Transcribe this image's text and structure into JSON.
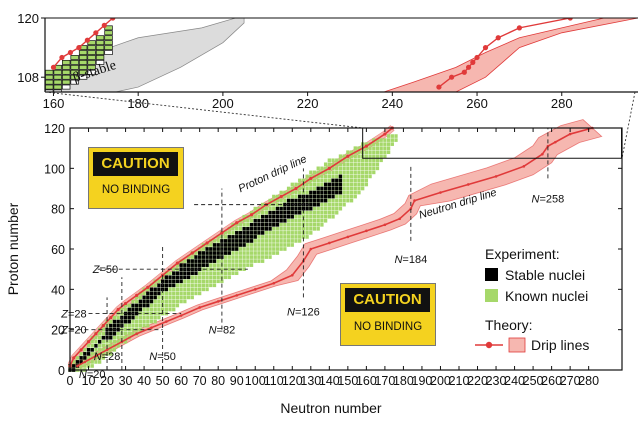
{
  "chart_data": [
    {
      "type": "scatter",
      "title": "",
      "xlabel": "",
      "ylabel": "",
      "xlim": [
        158,
        298
      ],
      "ylim": [
        105,
        120
      ],
      "x_ticks": [
        "160",
        "180",
        "200",
        "220",
        "240",
        "260",
        "280"
      ],
      "y_ticks": [
        "108",
        "120"
      ],
      "annotations": [
        "β-stable"
      ],
      "series": [
        {
          "role": "proton-drip",
          "x": [
            160,
            162,
            164,
            166,
            168,
            170,
            172,
            174
          ],
          "y": [
            110,
            112,
            113,
            114,
            115.5,
            117,
            118.5,
            120
          ]
        },
        {
          "role": "neutron-drip",
          "x": [
            251,
            254,
            257,
            258,
            259,
            260,
            262,
            265,
            270,
            282
          ],
          "y": [
            106,
            108,
            109,
            110,
            111,
            112,
            114,
            116,
            118,
            120
          ]
        },
        {
          "role": "neutron-drip-band-outer",
          "x": [
            238,
            245,
            255,
            262,
            270,
            290
          ],
          "y": [
            105,
            107,
            110,
            113,
            116,
            120
          ]
        },
        {
          "role": "neutron-drip-band-inner",
          "x": [
            255,
            262,
            266,
            270,
            280,
            298
          ],
          "y": [
            105,
            108,
            111,
            114,
            117,
            120
          ]
        }
      ]
    },
    {
      "type": "scatter",
      "title": "",
      "xlabel": "Neutron number",
      "ylabel": "Proton number",
      "xlim": [
        0,
        298
      ],
      "ylim": [
        0,
        120
      ],
      "x_ticks": [
        "0",
        "10",
        "20",
        "30",
        "40",
        "50",
        "60",
        "70",
        "80",
        "90",
        "100",
        "110",
        "120",
        "130",
        "140",
        "150",
        "160",
        "170",
        "180",
        "190",
        "200",
        "210",
        "220",
        "230",
        "240",
        "250",
        "260",
        "270",
        "280"
      ],
      "y_ticks": [
        "0",
        "20",
        "40",
        "60",
        "80",
        "100",
        "120"
      ],
      "legend": {
        "position": "right",
        "experiment_title": "Experiment:",
        "stable_label": "Stable nuclei",
        "known_label": "Known nuclei",
        "theory_title": "Theory:",
        "drip_label": "Drip lines"
      },
      "annotations": {
        "proton_drip": "Proton drip line",
        "neutron_drip": "Neutron drip line",
        "magic": [
          "Z=82",
          "Z=50",
          "Z=28",
          "Z=20",
          "N=20",
          "N=28",
          "N=50",
          "N=82",
          "N=126",
          "N=184",
          "N=258"
        ]
      },
      "magic_numbers": {
        "Z": [
          20,
          28,
          50,
          82
        ],
        "N": [
          20,
          28,
          50,
          82,
          126,
          184,
          258
        ]
      },
      "series": [
        {
          "role": "proton-drip-line",
          "x": [
            0,
            2,
            6,
            10,
            14,
            18,
            22,
            26,
            30,
            36,
            42,
            50,
            58,
            66,
            74,
            82,
            90,
            98,
            106,
            114,
            122,
            130,
            140,
            150,
            160,
            170,
            174
          ],
          "y": [
            2,
            6,
            10,
            14,
            18,
            22,
            26,
            30,
            33,
            37,
            41,
            47,
            53,
            58,
            63,
            68,
            73,
            77,
            82,
            86,
            90,
            95,
            100,
            106,
            111,
            117,
            120
          ]
        },
        {
          "role": "neutron-drip-line",
          "x": [
            4,
            8,
            14,
            20,
            28,
            36,
            44,
            52,
            60,
            70,
            80,
            90,
            100,
            110,
            120,
            126,
            130,
            140,
            150,
            160,
            170,
            178,
            184,
            186,
            200,
            215,
            230,
            245,
            255,
            258,
            262,
            270,
            282
          ],
          "y": [
            2,
            4,
            7,
            10,
            14,
            18,
            21,
            24,
            27,
            31,
            34,
            37,
            40,
            43,
            47,
            54,
            60,
            63,
            66,
            69,
            72,
            75,
            80,
            84,
            88,
            92,
            96,
            101,
            107,
            111,
            113,
            117,
            120
          ]
        },
        {
          "role": "stable-valley",
          "x": [
            1,
            10,
            20,
            30,
            40,
            50,
            60,
            70,
            82,
            100,
            118,
            126,
            146
          ],
          "y": [
            1,
            9,
            18,
            26,
            34,
            42,
            48,
            54,
            60,
            70,
            80,
            83,
            92
          ]
        },
        {
          "role": "known-upper-edge",
          "x": [
            0,
            10,
            20,
            30,
            40,
            50,
            60,
            70,
            82,
            100,
            120,
            140,
            160,
            177
          ],
          "y": [
            2,
            14,
            24,
            32,
            40,
            47,
            54,
            61,
            68,
            80,
            92,
            104,
            113,
            118
          ]
        },
        {
          "role": "known-lower-edge",
          "x": [
            6,
            15,
            25,
            35,
            45,
            55,
            65,
            75,
            85,
            100,
            115,
            126,
            140,
            155,
            162
          ],
          "y": [
            1,
            5,
            12,
            19,
            25,
            31,
            37,
            42,
            47,
            54,
            61,
            66,
            76,
            88,
            96
          ]
        }
      ]
    }
  ],
  "caution_signs": [
    {
      "heading": "CAUTION",
      "text": "NO BINDING"
    },
    {
      "heading": "CAUTION",
      "text": "NO BINDING"
    }
  ],
  "colors": {
    "stable": "#000000",
    "known": "#a6d86a",
    "drip_line": "#e03a3a",
    "drip_band": "#f6b7b0",
    "beta_stable_band": "#dcdcdc",
    "caution_bg": "#f4d21f",
    "caution_head_bg": "#111111"
  }
}
